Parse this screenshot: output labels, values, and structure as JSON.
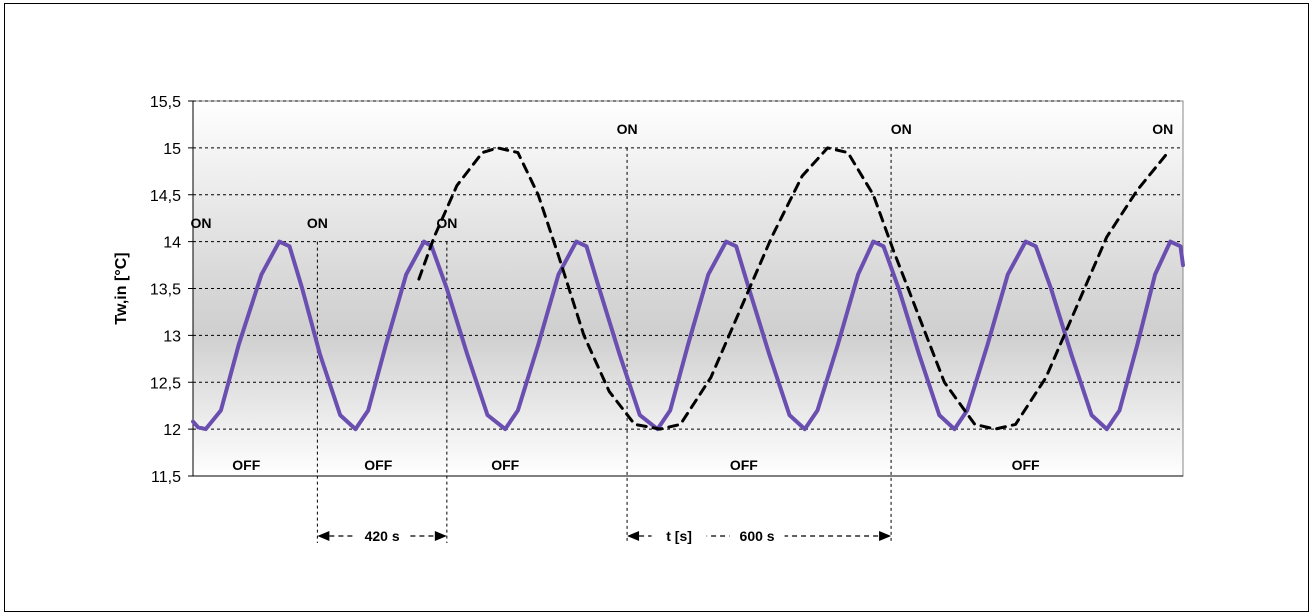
{
  "chart_data": {
    "type": "line",
    "ylabel": "Tw,in [°C]",
    "xlabel": "",
    "ylim": [
      11.5,
      15.5
    ],
    "yticks": [
      "15,5",
      "15",
      "14,5",
      "14",
      "13,5",
      "13",
      "12,5",
      "12",
      "11,5"
    ],
    "yticks_values": [
      15.5,
      15,
      14.5,
      14,
      13.5,
      13,
      12.5,
      12,
      11.5
    ],
    "xlim": [
      0,
      1950
    ],
    "grid": true,
    "series": [
      {
        "color": "#6a4fb0",
        "style": "solid",
        "period_s": 330,
        "points": [
          [
            0,
            12.08
          ],
          [
            10,
            12.02
          ],
          [
            25,
            12.0
          ],
          [
            55,
            12.2
          ],
          [
            90,
            12.9
          ],
          [
            135,
            13.65
          ],
          [
            170,
            14.0
          ],
          [
            190,
            13.95
          ],
          [
            215,
            13.5
          ],
          [
            250,
            12.8
          ],
          [
            290,
            12.15
          ],
          [
            320,
            12.0
          ],
          [
            345,
            12.2
          ],
          [
            380,
            12.9
          ],
          [
            420,
            13.65
          ],
          [
            455,
            14.0
          ],
          [
            470,
            13.95
          ],
          [
            500,
            13.5
          ],
          [
            540,
            12.8
          ],
          [
            580,
            12.15
          ],
          [
            615,
            12.0
          ],
          [
            640,
            12.2
          ],
          [
            680,
            12.9
          ],
          [
            720,
            13.65
          ],
          [
            755,
            14.0
          ],
          [
            775,
            13.95
          ],
          [
            800,
            13.5
          ],
          [
            840,
            12.8
          ],
          [
            880,
            12.15
          ],
          [
            915,
            12.0
          ],
          [
            940,
            12.2
          ],
          [
            975,
            12.9
          ],
          [
            1015,
            13.65
          ],
          [
            1050,
            14.0
          ],
          [
            1070,
            13.95
          ],
          [
            1095,
            13.5
          ],
          [
            1135,
            12.8
          ],
          [
            1175,
            12.15
          ],
          [
            1205,
            12.0
          ],
          [
            1230,
            12.2
          ],
          [
            1270,
            12.9
          ],
          [
            1310,
            13.65
          ],
          [
            1340,
            14.0
          ],
          [
            1360,
            13.95
          ],
          [
            1390,
            13.5
          ],
          [
            1430,
            12.8
          ],
          [
            1470,
            12.15
          ],
          [
            1500,
            12.0
          ],
          [
            1525,
            12.2
          ],
          [
            1565,
            12.9
          ],
          [
            1605,
            13.65
          ],
          [
            1640,
            14.0
          ],
          [
            1660,
            13.95
          ],
          [
            1690,
            13.5
          ],
          [
            1730,
            12.8
          ],
          [
            1770,
            12.15
          ],
          [
            1800,
            12.0
          ],
          [
            1825,
            12.2
          ],
          [
            1860,
            12.9
          ],
          [
            1895,
            13.65
          ],
          [
            1925,
            14.0
          ],
          [
            1945,
            13.95
          ],
          [
            1950,
            13.75
          ]
        ]
      },
      {
        "color": "#000000",
        "style": "dashed",
        "period_s": 600,
        "points": [
          [
            445,
            13.6
          ],
          [
            475,
            14.05
          ],
          [
            520,
            14.6
          ],
          [
            570,
            14.95
          ],
          [
            600,
            15.0
          ],
          [
            640,
            14.95
          ],
          [
            680,
            14.5
          ],
          [
            720,
            13.85
          ],
          [
            770,
            13.0
          ],
          [
            820,
            12.4
          ],
          [
            870,
            12.05
          ],
          [
            920,
            12.0
          ],
          [
            960,
            12.05
          ],
          [
            1020,
            12.55
          ],
          [
            1080,
            13.3
          ],
          [
            1140,
            14.05
          ],
          [
            1200,
            14.7
          ],
          [
            1250,
            15.0
          ],
          [
            1290,
            14.95
          ],
          [
            1340,
            14.5
          ],
          [
            1380,
            13.9
          ],
          [
            1430,
            13.2
          ],
          [
            1480,
            12.5
          ],
          [
            1540,
            12.05
          ],
          [
            1580,
            12.0
          ],
          [
            1620,
            12.05
          ],
          [
            1680,
            12.55
          ],
          [
            1740,
            13.3
          ],
          [
            1800,
            14.05
          ],
          [
            1860,
            14.55
          ],
          [
            1920,
            14.95
          ]
        ]
      }
    ],
    "annotations": {
      "on_labels": [
        "ON",
        "ON",
        "ON",
        "ON",
        "ON",
        "ON"
      ],
      "off_labels": [
        "OFF",
        "OFF",
        "OFF",
        "OFF",
        "OFF"
      ],
      "on_x": [
        0,
        245,
        500,
        855,
        1395,
        1910
      ],
      "on_y": [
        14.2,
        14.2,
        14.2,
        15.2,
        15.2,
        15.2
      ],
      "off_x": [
        105,
        365,
        615,
        1085,
        1640
      ],
      "vlines_x": [
        245,
        500,
        855,
        1375
      ],
      "vlines_ymax": [
        14.0,
        14.0,
        15.0,
        15.0
      ],
      "interval1": {
        "label": "420 s",
        "from": 245,
        "to": 500
      },
      "interval2": {
        "label": "600 s",
        "from": 855,
        "to": 1375,
        "t_label": "t [s]"
      }
    }
  }
}
